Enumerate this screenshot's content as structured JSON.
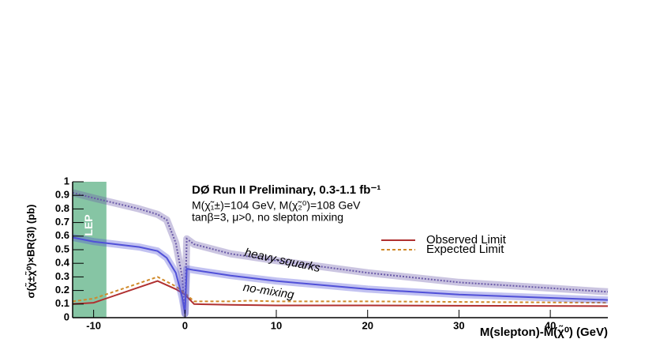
{
  "chart_data": {
    "type": "line",
    "title": "DØ Run II Preliminary, 0.3-1.1 fb⁻¹",
    "subtitle": [
      "M(χ̃₁±)=104 GeV, M(χ̃₂⁰)=108 GeV",
      "tanβ=3, μ>0, no slepton mixing"
    ],
    "x_label": "M(slepton)-M(χ̃⁰) (GeV)",
    "y_label": "σ(χ̃±χ̃⁰)×BR(3l) (pb)",
    "excluded_region": {
      "label": "LEP",
      "range": [
        -12.3,
        -8.6
      ],
      "color": "#86c5a4"
    },
    "xlim": [
      -12.3,
      46.3
    ],
    "ylim": [
      0,
      1
    ],
    "xticks": [
      -10,
      0,
      10,
      20,
      30,
      40
    ],
    "yticks": [
      0,
      0.1,
      0.2,
      0.3,
      0.4,
      0.5,
      0.6,
      0.7,
      0.8,
      0.9,
      1
    ],
    "series": [
      {
        "name": "Observed Limit",
        "color": "#b03030",
        "style": "solid",
        "x": [
          -12.3,
          -10,
          -3,
          -1,
          0,
          1,
          5,
          10,
          20,
          30,
          46.3
        ],
        "values": [
          0.1,
          0.11,
          0.27,
          0.21,
          0.17,
          0.1,
          0.095,
          0.09,
          0.09,
          0.088,
          0.085
        ]
      },
      {
        "name": "Expected Limit",
        "color": "#d08a2a",
        "style": "dashed",
        "x": [
          -12.3,
          -10,
          -3,
          -1,
          0,
          1,
          5,
          7,
          10,
          20,
          46.3
        ],
        "values": [
          0.12,
          0.14,
          0.3,
          0.23,
          0.18,
          0.12,
          0.12,
          0.125,
          0.12,
          0.12,
          0.11
        ]
      },
      {
        "name": "heavy-squarks",
        "color": "#6a5aa8",
        "style": "dotted-band",
        "x": [
          -12.3,
          -10,
          -5,
          -3,
          -2,
          -1,
          -0.3,
          0,
          0.2,
          1,
          5,
          10,
          20,
          30,
          46.3
        ],
        "values": [
          0.92,
          0.88,
          0.8,
          0.76,
          0.72,
          0.55,
          0.3,
          0.03,
          0.58,
          0.54,
          0.47,
          0.42,
          0.33,
          0.26,
          0.19
        ]
      },
      {
        "name": "no-mixing",
        "color": "#5050d8",
        "style": "solid-band",
        "x": [
          -12.3,
          -10,
          -5,
          -3,
          -2,
          -1,
          -0.3,
          0,
          0.2,
          1,
          5,
          10,
          20,
          30,
          46.3
        ],
        "values": [
          0.59,
          0.56,
          0.52,
          0.49,
          0.44,
          0.33,
          0.15,
          0.03,
          0.36,
          0.35,
          0.31,
          0.27,
          0.21,
          0.17,
          0.13
        ]
      }
    ]
  }
}
